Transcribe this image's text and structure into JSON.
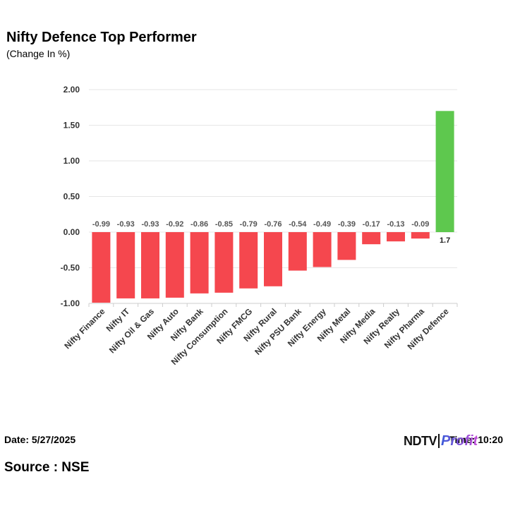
{
  "header": {
    "title": "Nifty Defence Top Performer",
    "subtitle": "(Change In %)"
  },
  "footer": {
    "date": "Date: 5/27/2025",
    "source": "Source : NSE",
    "time": "Time: 10:20",
    "logo_ndtv": "NDTV",
    "logo_profit": "Profit"
  },
  "colors": {
    "negative": "#f5474e",
    "positive": "#5ec84e",
    "grid": "#e6e6e6"
  },
  "chart_data": {
    "type": "bar",
    "categories": [
      "Nifty Finance",
      "Nifty IT",
      "Nifty Oil & Gas",
      "Nifty Auto",
      "Nifty Bank",
      "Nifty Consumption",
      "Nifty FMCG",
      "Nifty Rural",
      "Nifty PSU Bank",
      "Nifty Energy",
      "Nifty Metal",
      "Nifty Media",
      "Nifty Realty",
      "Nifty Pharma",
      "Nifty Defence"
    ],
    "values": [
      -0.99,
      -0.93,
      -0.93,
      -0.92,
      -0.86,
      -0.85,
      -0.79,
      -0.76,
      -0.54,
      -0.49,
      -0.39,
      -0.17,
      -0.13,
      -0.09,
      1.7
    ],
    "data_labels": [
      "-0.99",
      "-0.93",
      "-0.93",
      "-0.92",
      "-0.86",
      "-0.85",
      "-0.79",
      "-0.76",
      "-0.54",
      "-0.49",
      "-0.39",
      "-0.17",
      "-0.13",
      "-0.09",
      "1.7"
    ],
    "y_ticks": [
      "2.00",
      "1.50",
      "1.00",
      "0.50",
      "0.00",
      "-0.50",
      "-1.00"
    ],
    "y_tick_values": [
      2.0,
      1.5,
      1.0,
      0.5,
      0.0,
      -0.5,
      -1.0
    ],
    "ylim": [
      -1.0,
      2.0
    ],
    "grid": true,
    "legend": "none"
  }
}
